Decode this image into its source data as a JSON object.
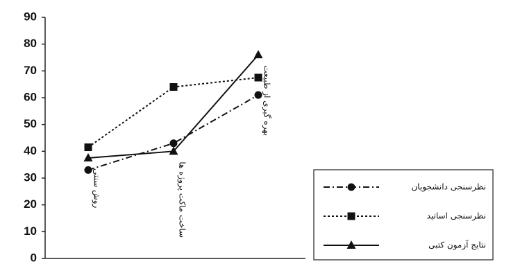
{
  "chart_data": {
    "type": "line",
    "categories": [
      "روش سنتی",
      "ساخت ماکت پروژه ها",
      "بهره گیری از طبیعت"
    ],
    "series": [
      {
        "name": "نظرسنجی دانشجویان",
        "color": "#111111",
        "dash": "dash-dot",
        "marker": "circle",
        "values": [
          33,
          43,
          61
        ]
      },
      {
        "name": "نظرسنجی اساتید",
        "color": "#111111",
        "dash": "dotted",
        "marker": "square",
        "values": [
          41.5,
          64,
          67.5
        ]
      },
      {
        "name": "نتایج آزمون کتبی",
        "color": "#111111",
        "dash": "solid",
        "marker": "triangle",
        "values": [
          37.5,
          40,
          76
        ]
      }
    ],
    "ylim": [
      0,
      90
    ],
    "yticks": [
      0,
      10,
      20,
      30,
      40,
      50,
      60,
      70,
      80,
      90
    ],
    "legend": "lower-right"
  }
}
